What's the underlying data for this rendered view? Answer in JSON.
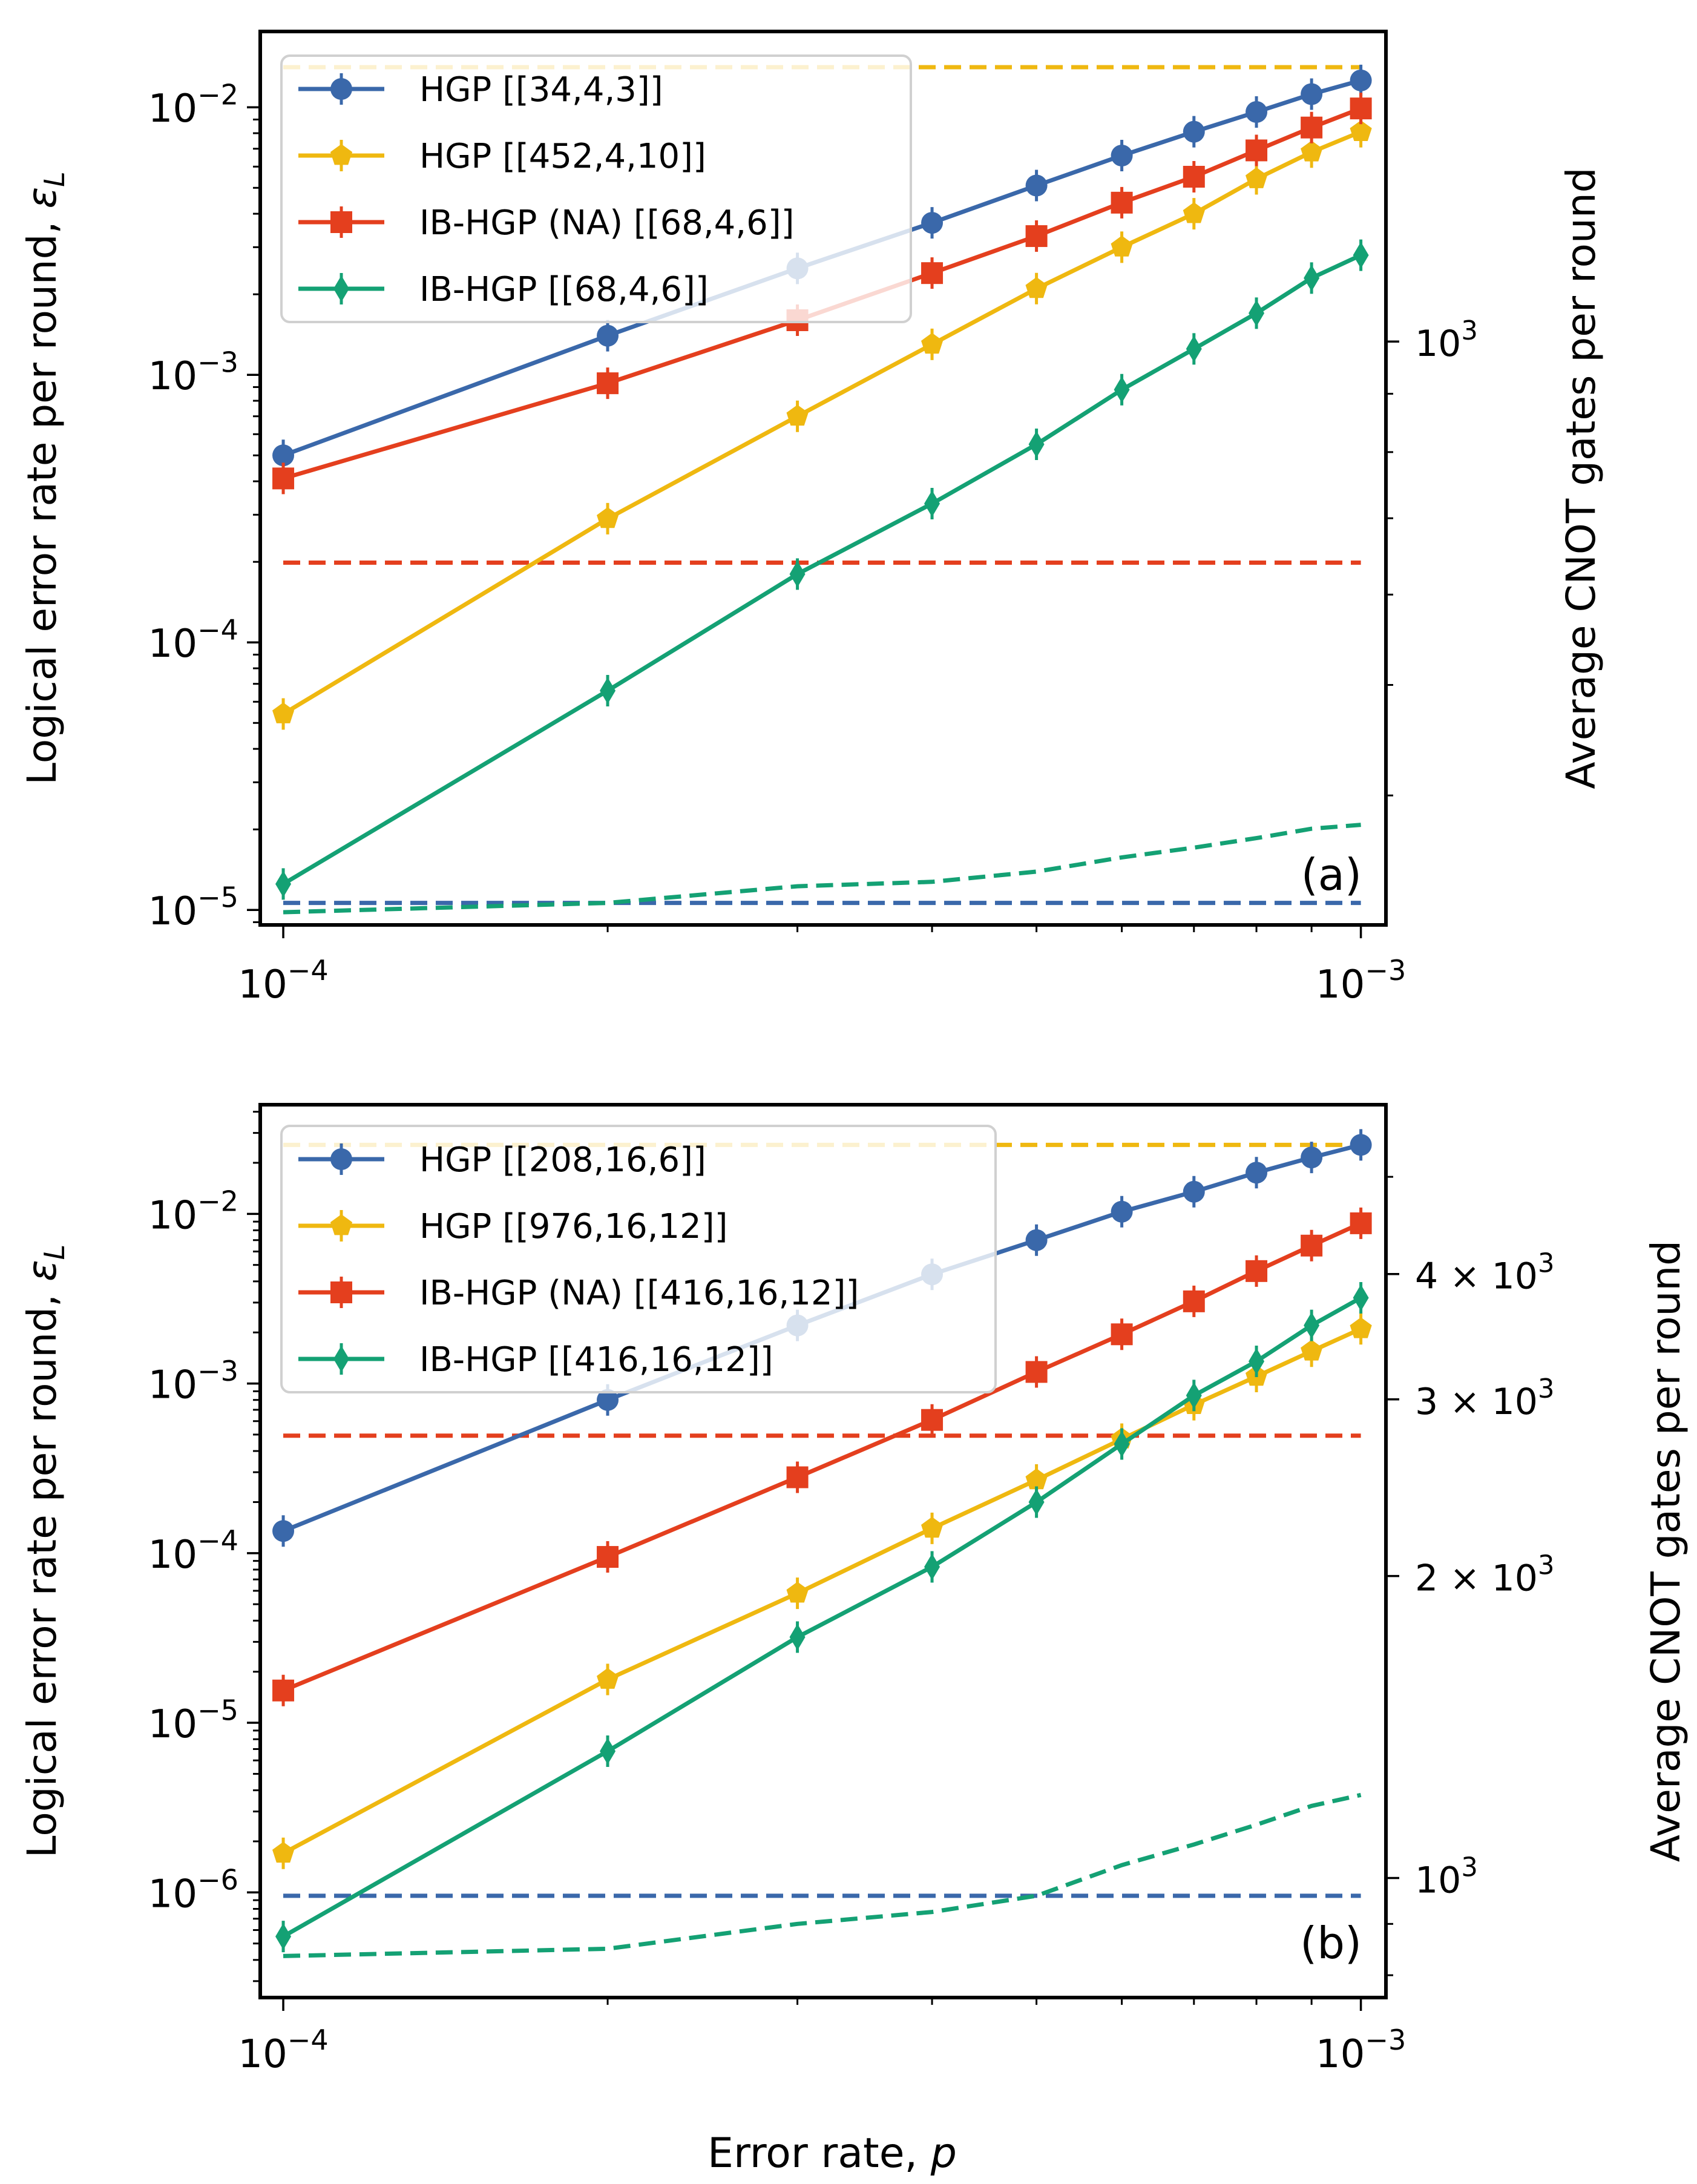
{
  "figure": {
    "xlabel_prefix": "Error rate, ",
    "xlabel_var": "p"
  },
  "chart_data": [
    {
      "type": "line",
      "panel_label": "(a)",
      "xscale": "log",
      "yscale": "log",
      "x": [
        0.0001,
        0.0002,
        0.0003,
        0.0004,
        0.0005,
        0.0006,
        0.0007,
        0.0008,
        0.0009,
        0.001
      ],
      "xlim": [
        9.52e-05,
        0.001055
      ],
      "ylim": [
        8.79e-06,
        0.0192
      ],
      "y2lim": [
        308,
        1870
      ],
      "ylabel_prefix": "Logical error rate per round, ",
      "ylabel_var": "ε",
      "ylabel_sub": "L",
      "y2label": "Average CNOT gates per round",
      "x_ticks": [
        {
          "value": 0.0001,
          "base": "10",
          "exp": "−4"
        },
        {
          "value": 0.001,
          "base": "10",
          "exp": "−3"
        }
      ],
      "y_ticks": [
        {
          "value": 1e-05,
          "base": "10",
          "exp": "−5"
        },
        {
          "value": 0.0001,
          "base": "10",
          "exp": "−4"
        },
        {
          "value": 0.001,
          "base": "10",
          "exp": "−3"
        },
        {
          "value": 0.01,
          "base": "10",
          "exp": "−2"
        }
      ],
      "y2_ticks": [
        {
          "value": 1000,
          "mantissa": "",
          "base": "10",
          "exp": "3"
        }
      ],
      "y2_minor": [
        400,
        500,
        600,
        700,
        800,
        900,
        2000
      ],
      "legend_position": "upper-left",
      "series": [
        {
          "name": "HGP [[34,4,3]]",
          "marker": "circle",
          "color": "#3a68aa",
          "values": [
            0.0005,
            0.0014,
            0.0025,
            0.0037,
            0.0051,
            0.0066,
            0.0081,
            0.0096,
            0.0112,
            0.0126
          ]
        },
        {
          "name": "HGP [[452,4,10]]",
          "marker": "pentagon",
          "color": "#efb810",
          "values": [
            5.4e-05,
            0.00029,
            0.0007,
            0.0013,
            0.0021,
            0.003,
            0.004,
            0.0054,
            0.0068,
            0.0081
          ]
        },
        {
          "name": "IB-HGP (NA) [[68,4,6]]",
          "marker": "square",
          "color": "#e43f1e",
          "values": [
            0.00041,
            0.00093,
            0.0016,
            0.0024,
            0.0033,
            0.0044,
            0.0055,
            0.0069,
            0.0084,
            0.0099
          ]
        },
        {
          "name": "IB-HGP [[68,4,6]]",
          "marker": "diamond",
          "color": "#14a174",
          "values": [
            1.25e-05,
            6.6e-05,
            0.00018,
            0.00033,
            0.00055,
            0.00088,
            0.00125,
            0.0017,
            0.0023,
            0.0028
          ]
        }
      ],
      "cnot_series": [
        {
          "name": "HGP [[34,4,3]] CNOT",
          "color": "#3a68aa",
          "values": [
            322,
            322,
            322,
            322,
            322,
            322,
            322,
            322,
            322,
            322
          ]
        },
        {
          "name": "HGP [[452,4,10]] CNOT",
          "color": "#efb810",
          "values": [
            1740,
            1740,
            1740,
            1740,
            1740,
            1740,
            1740,
            1740,
            1740,
            1740
          ]
        },
        {
          "name": "IB-HGP (NA) [[68,4,6]] CNOT",
          "color": "#e43f1e",
          "values": [
            640,
            640,
            640,
            640,
            640,
            640,
            640,
            640,
            640,
            640
          ]
        },
        {
          "name": "IB-HGP [[68,4,6]] CNOT",
          "color": "#14a174",
          "values": [
            316,
            322,
            333,
            336,
            343,
            353,
            360,
            367,
            374,
            377
          ]
        }
      ]
    },
    {
      "type": "line",
      "panel_label": "(b)",
      "xscale": "log",
      "yscale": "log",
      "x": [
        0.0001,
        0.0002,
        0.0003,
        0.0004,
        0.0005,
        0.0006,
        0.0007,
        0.0008,
        0.0009,
        0.001
      ],
      "xlim": [
        9.52e-05,
        0.001055
      ],
      "ylim": [
        2.4e-07,
        0.044
      ],
      "y2lim": [
        760,
        5900
      ],
      "ylabel_prefix": "Logical error rate per round, ",
      "ylabel_var": "ε",
      "ylabel_sub": "L",
      "y2label": "Average CNOT gates per round",
      "x_ticks": [
        {
          "value": 0.0001,
          "base": "10",
          "exp": "−4"
        },
        {
          "value": 0.001,
          "base": "10",
          "exp": "−3"
        }
      ],
      "y_ticks": [
        {
          "value": 1e-06,
          "base": "10",
          "exp": "−6"
        },
        {
          "value": 1e-05,
          "base": "10",
          "exp": "−5"
        },
        {
          "value": 0.0001,
          "base": "10",
          "exp": "−4"
        },
        {
          "value": 0.001,
          "base": "10",
          "exp": "−3"
        },
        {
          "value": 0.01,
          "base": "10",
          "exp": "−2"
        }
      ],
      "y2_ticks": [
        {
          "value": 1000,
          "mantissa": "",
          "base": "10",
          "exp": "3"
        },
        {
          "value": 2000,
          "mantissa": "2 × ",
          "base": "10",
          "exp": "3"
        },
        {
          "value": 3000,
          "mantissa": "3 × ",
          "base": "10",
          "exp": "3"
        },
        {
          "value": 4000,
          "mantissa": "4 × ",
          "base": "10",
          "exp": "3"
        }
      ],
      "y2_minor": [
        800,
        900,
        5000
      ],
      "legend_position": "upper-left",
      "series": [
        {
          "name": "HGP [[208,16,6]]",
          "marker": "circle",
          "color": "#3a68aa",
          "values": [
            0.000135,
            0.0008,
            0.0022,
            0.0044,
            0.007,
            0.0103,
            0.0135,
            0.0175,
            0.0215,
            0.0255
          ]
        },
        {
          "name": "HGP [[976,16,12]]",
          "marker": "pentagon",
          "color": "#efb810",
          "values": [
            1.7e-06,
            1.8e-05,
            5.8e-05,
            0.00014,
            0.00027,
            0.00047,
            0.00075,
            0.0011,
            0.00155,
            0.0021
          ]
        },
        {
          "name": "IB-HGP (NA) [[416,16,12]]",
          "marker": "square",
          "color": "#e43f1e",
          "values": [
            1.55e-05,
            9.5e-05,
            0.00028,
            0.00061,
            0.00117,
            0.00195,
            0.00305,
            0.0046,
            0.0065,
            0.0088
          ]
        },
        {
          "name": "IB-HGP [[416,16,12]]",
          "marker": "diamond",
          "color": "#14a174",
          "values": [
            5.5e-07,
            6.8e-06,
            3.2e-05,
            8.3e-05,
            0.0002,
            0.00044,
            0.00085,
            0.00135,
            0.0022,
            0.0032
          ]
        }
      ],
      "cnot_series": [
        {
          "name": "HGP [[208,16,6]] CNOT",
          "color": "#3a68aa",
          "values": [
            960,
            960,
            960,
            960,
            960,
            960,
            960,
            960,
            960,
            960
          ]
        },
        {
          "name": "HGP [[976,16,12]] CNOT",
          "color": "#efb810",
          "values": [
            5380,
            5380,
            5380,
            5380,
            5380,
            5380,
            5380,
            5380,
            5380,
            5380
          ]
        },
        {
          "name": "IB-HGP (NA) [[416,16,12]] CNOT",
          "color": "#e43f1e",
          "values": [
            2760,
            2760,
            2760,
            2760,
            2760,
            2760,
            2760,
            2760,
            2760,
            2760
          ]
        },
        {
          "name": "IB-HGP [[416,16,12]] CNOT",
          "color": "#14a174",
          "values": [
            836,
            850,
            900,
            925,
            960,
            1030,
            1080,
            1130,
            1180,
            1210
          ]
        }
      ]
    }
  ]
}
